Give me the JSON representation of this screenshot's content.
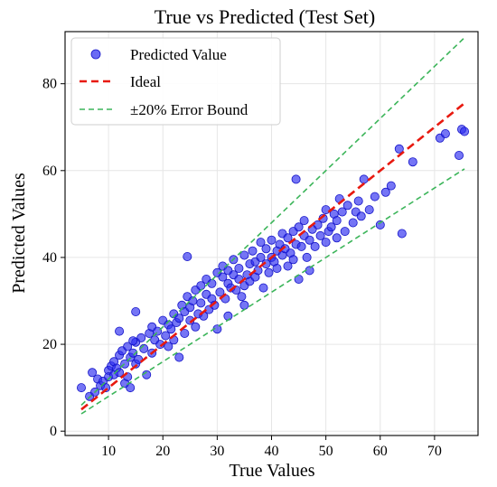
{
  "chart_data": {
    "type": "scatter",
    "title": "True vs Predicted (Test Set)",
    "xlabel": "True Values",
    "ylabel": "Predicted Values",
    "xlim": [
      2,
      78
    ],
    "ylim": [
      -1,
      92
    ],
    "xticks": [
      "10",
      "20",
      "30",
      "40",
      "50",
      "60",
      "70"
    ],
    "yticks": [
      "0",
      "20",
      "40",
      "60",
      "80"
    ],
    "grid": true,
    "legend_position": "top-left",
    "colors": {
      "points": "#2b2bf0",
      "ideal": "#e8190f",
      "bound": "#3cb55a"
    },
    "series": [
      {
        "name": "Predicted Value",
        "kind": "scatter",
        "x": [
          5.0,
          6.5,
          7.0,
          7.5,
          8.0,
          8.5,
          9.0,
          9.5,
          10.0,
          10.0,
          10.5,
          11.0,
          11.0,
          11.5,
          12.0,
          12.0,
          12.5,
          13.0,
          13.0,
          13.5,
          13.5,
          14.0,
          14.0,
          14.5,
          15.0,
          15.0,
          15.5,
          16.0,
          16.5,
          17.0,
          17.5,
          18.0,
          18.0,
          18.5,
          19.0,
          19.5,
          20.0,
          20.5,
          21.0,
          21.0,
          21.5,
          22.0,
          22.0,
          22.5,
          23.0,
          23.0,
          23.5,
          24.0,
          24.0,
          24.5,
          25.0,
          25.0,
          25.5,
          26.0,
          26.0,
          26.5,
          27.0,
          27.0,
          27.5,
          28.0,
          28.0,
          28.5,
          29.0,
          29.0,
          29.5,
          30.0,
          30.0,
          30.5,
          31.0,
          31.0,
          31.5,
          32.0,
          32.0,
          32.0,
          32.5,
          33.0,
          33.0,
          33.5,
          34.0,
          34.0,
          34.5,
          35.0,
          35.0,
          35.0,
          35.5,
          36.0,
          36.0,
          36.5,
          37.0,
          37.0,
          37.5,
          38.0,
          38.0,
          38.5,
          39.0,
          39.0,
          39.5,
          40.0,
          40.0,
          40.5,
          41.0,
          41.0,
          41.5,
          42.0,
          42.0,
          42.5,
          43.0,
          43.0,
          43.5,
          44.0,
          44.0,
          44.5,
          45.0,
          45.0,
          45.5,
          46.0,
          46.0,
          46.5,
          47.0,
          47.0,
          47.5,
          48.0,
          48.5,
          49.0,
          49.5,
          50.0,
          50.0,
          50.5,
          51.0,
          51.5,
          52.0,
          52.0,
          52.5,
          53.0,
          53.5,
          54.0,
          55.0,
          55.5,
          56.0,
          56.5,
          57.0,
          58.0,
          59.0,
          60.0,
          61.0,
          62.0,
          63.5,
          64.0,
          66.0,
          71.0,
          72.0,
          74.5,
          75.0,
          75.5,
          44.5,
          24.5,
          12.0,
          14.5,
          15.0
        ],
        "y": [
          10.0,
          8.0,
          13.5,
          9.0,
          12.0,
          10.5,
          11.5,
          10.0,
          14.0,
          12.5,
          15.0,
          13.0,
          16.0,
          14.5,
          17.5,
          13.5,
          18.5,
          11.0,
          15.5,
          19.5,
          12.5,
          17.0,
          10.0,
          18.0,
          20.5,
          15.5,
          16.5,
          21.5,
          19.0,
          13.0,
          22.5,
          18.0,
          24.0,
          21.0,
          23.0,
          20.0,
          25.5,
          22.0,
          19.5,
          24.5,
          23.5,
          27.0,
          21.0,
          25.0,
          26.0,
          17.0,
          29.0,
          22.5,
          27.5,
          31.0,
          25.5,
          28.5,
          30.0,
          24.0,
          32.5,
          27.0,
          29.5,
          33.5,
          26.5,
          31.5,
          35.0,
          28.0,
          30.5,
          34.0,
          29.0,
          36.5,
          23.5,
          32.0,
          35.5,
          38.0,
          30.5,
          34.0,
          37.0,
          26.5,
          33.0,
          36.0,
          39.5,
          32.5,
          35.0,
          37.5,
          31.0,
          33.5,
          40.5,
          29.0,
          36.0,
          38.5,
          34.5,
          41.5,
          35.5,
          39.0,
          37.0,
          40.0,
          43.5,
          33.0,
          38.5,
          42.0,
          36.5,
          40.0,
          44.0,
          39.0,
          41.5,
          37.5,
          43.0,
          40.5,
          45.5,
          42.0,
          38.0,
          44.5,
          41.0,
          46.0,
          39.5,
          43.0,
          47.0,
          35.0,
          42.5,
          45.0,
          48.5,
          40.0,
          44.0,
          37.0,
          46.5,
          42.5,
          47.5,
          45.0,
          49.0,
          43.5,
          51.0,
          46.0,
          47.0,
          50.0,
          48.5,
          44.5,
          53.5,
          50.5,
          46.0,
          52.0,
          48.0,
          50.5,
          53.0,
          49.5,
          58.0,
          51.0,
          54.0,
          47.5,
          55.0,
          56.5,
          65.0,
          45.5,
          62.0,
          67.5,
          68.5,
          63.5,
          69.5,
          69.0,
          58.0,
          40.2,
          23.0,
          20.8,
          27.5
        ]
      },
      {
        "name": "Ideal",
        "kind": "line",
        "x": [
          5,
          75.5
        ],
        "y": [
          5,
          75.5
        ]
      },
      {
        "name": "±20% Error Bound",
        "kind": "line",
        "x": [
          5,
          75.5
        ],
        "y": [
          6,
          90.6
        ]
      },
      {
        "name": "",
        "kind": "line",
        "x": [
          5,
          75.5
        ],
        "y": [
          4,
          60.4
        ]
      }
    ]
  }
}
